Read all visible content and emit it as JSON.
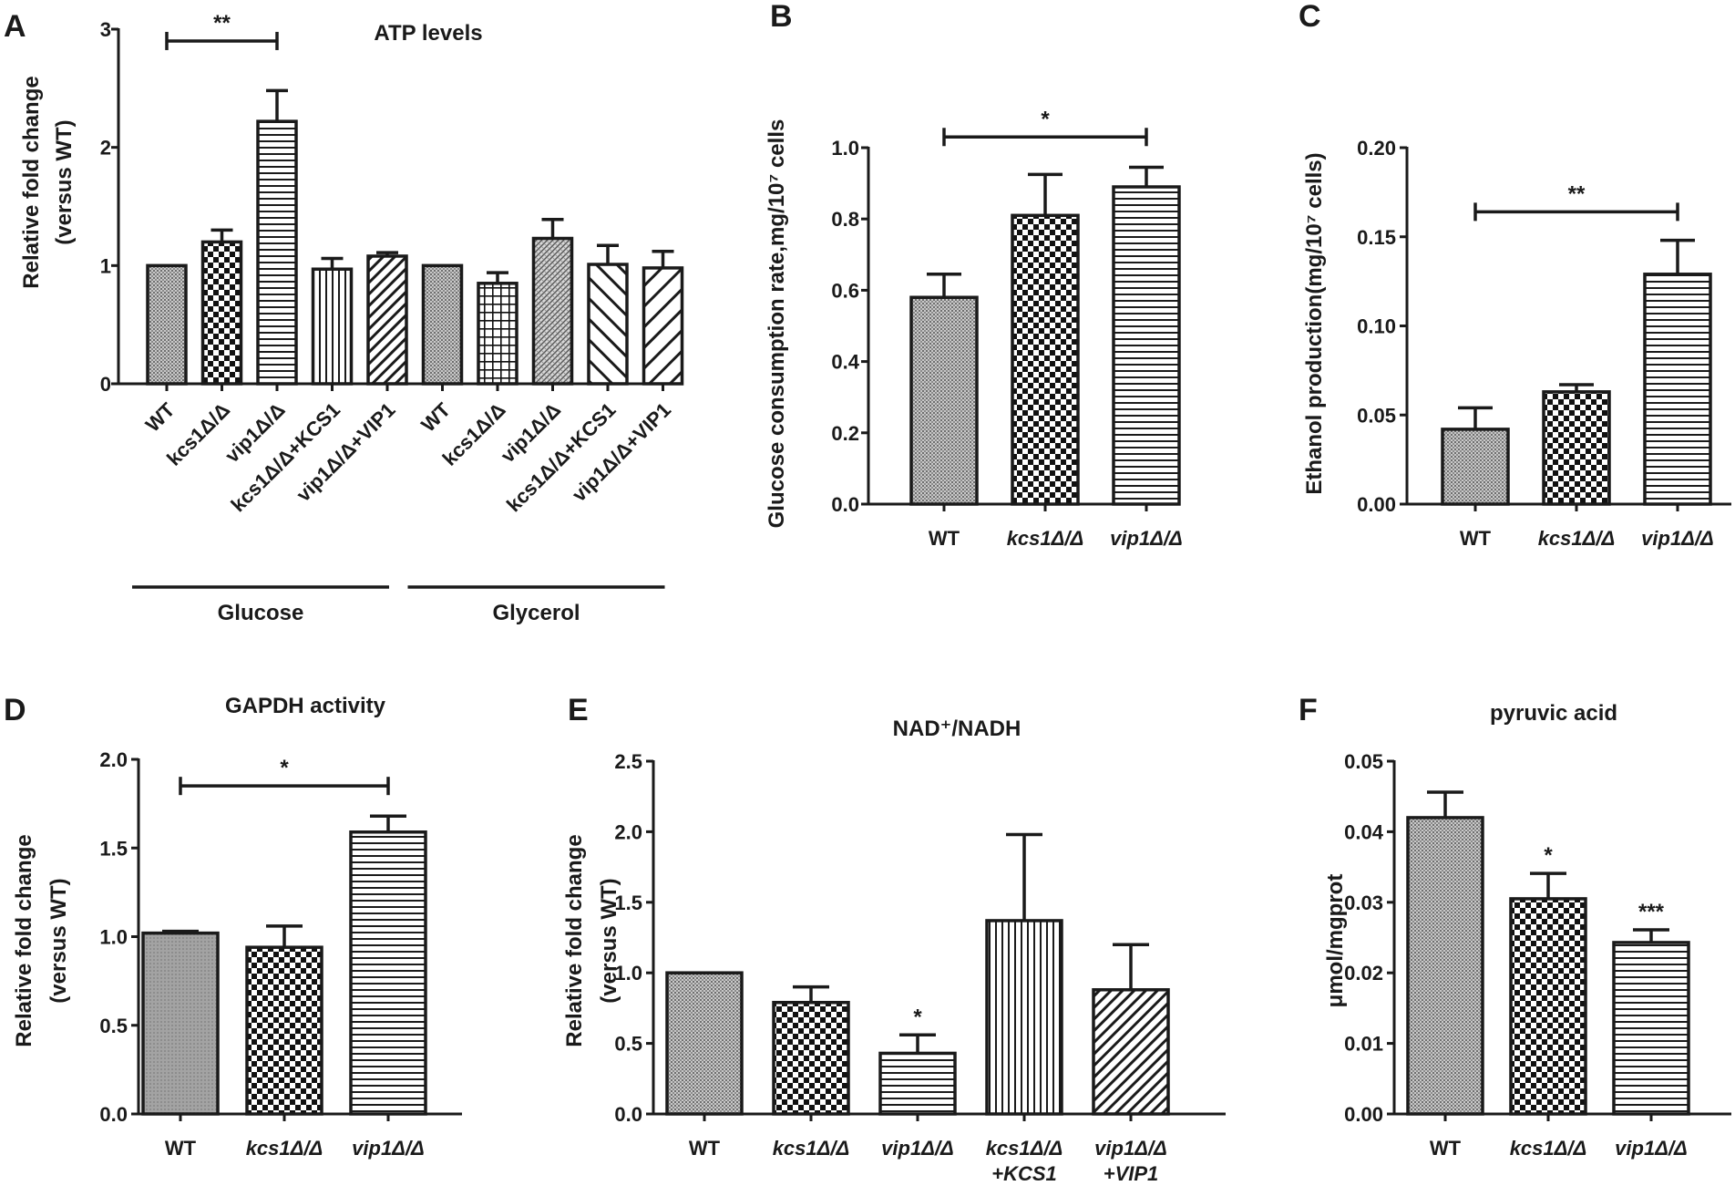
{
  "figure": {
    "background": "#ffffff",
    "ink": "#1a1a1a"
  },
  "chart_data": [
    {
      "panel": "A",
      "type": "bar",
      "title": "ATP levels",
      "ylabel": [
        "Relative fold change",
        "(versus WT)"
      ],
      "xlabel": "",
      "ylim": [
        0,
        3
      ],
      "yticks": [
        "0",
        "1",
        "2",
        "3"
      ],
      "grid": false,
      "rotate_labels": true,
      "categories": [
        "WT",
        "kcs1Δ/Δ",
        "vip1Δ/Δ",
        "kcs1Δ/Δ+KCS1",
        "vip1Δ/Δ+VIP1",
        "WT",
        "kcs1Δ/Δ",
        "vip1Δ/Δ",
        "kcs1Δ/Δ+KCS1",
        "vip1Δ/Δ+VIP1"
      ],
      "values": [
        1.0,
        1.2,
        2.22,
        0.97,
        1.08,
        1.0,
        0.85,
        1.23,
        1.01,
        0.98
      ],
      "errors": [
        0,
        0.1,
        0.26,
        0.09,
        0.03,
        0,
        0.09,
        0.16,
        0.16,
        0.14
      ],
      "patterns": [
        "fine",
        "checker",
        "hstripe",
        "vstripe",
        "diagR",
        "fine",
        "grid",
        "fineDiag",
        "diagL",
        "diagR2"
      ],
      "brackets": [
        {
          "from": 0,
          "to": 2,
          "y": 2.9,
          "label": "**"
        }
      ],
      "star_marks": [],
      "groups": [
        {
          "label": "Glucose",
          "from": 0,
          "to": 4
        },
        {
          "label": "Glycerol",
          "from": 5,
          "to": 9
        }
      ]
    },
    {
      "panel": "B",
      "type": "bar",
      "title": "",
      "ylabel": [
        "Glucose consumption rate,mg/10⁷ cells"
      ],
      "xlabel": "",
      "ylim": [
        0,
        1.0
      ],
      "yticks": [
        "0.0",
        "0.2",
        "0.4",
        "0.6",
        "0.8",
        "1.0"
      ],
      "grid": false,
      "rotate_labels": false,
      "categories": [
        "WT",
        "kcs1Δ/Δ",
        "vip1Δ/Δ"
      ],
      "italic_categories": [
        false,
        true,
        true
      ],
      "values": [
        0.58,
        0.81,
        0.89
      ],
      "errors": [
        0.065,
        0.115,
        0.055
      ],
      "patterns": [
        "fine",
        "checker",
        "hstripe"
      ],
      "brackets": [
        {
          "from": 0,
          "to": 2,
          "y": 1.03,
          "label": "*"
        }
      ],
      "star_marks": []
    },
    {
      "panel": "C",
      "type": "bar",
      "title": "",
      "ylabel": [
        "Ethanol production(mg/10⁷ cells)"
      ],
      "xlabel": "",
      "ylim": [
        0,
        0.2
      ],
      "yticks": [
        "0.00",
        "0.05",
        "0.10",
        "0.15",
        "0.20"
      ],
      "grid": false,
      "rotate_labels": false,
      "categories": [
        "WT",
        "kcs1Δ/Δ",
        "vip1Δ/Δ"
      ],
      "italic_categories": [
        false,
        true,
        true
      ],
      "values": [
        0.042,
        0.063,
        0.129
      ],
      "errors": [
        0.012,
        0.004,
        0.019
      ],
      "patterns": [
        "fine",
        "checker",
        "hstripe"
      ],
      "brackets": [
        {
          "from": 0,
          "to": 2,
          "y": 0.164,
          "label": "**"
        }
      ],
      "star_marks": []
    },
    {
      "panel": "D",
      "type": "bar",
      "title": "GAPDH activity",
      "ylabel": [
        "Relative fold change",
        "(versus WT)"
      ],
      "xlabel": "",
      "ylim": [
        0,
        2.0
      ],
      "yticks": [
        "0.0",
        "0.5",
        "1.0",
        "1.5",
        "2.0"
      ],
      "grid": false,
      "rotate_labels": false,
      "categories": [
        "WT",
        "kcs1Δ/Δ",
        "vip1Δ/Δ"
      ],
      "italic_categories": [
        false,
        true,
        true
      ],
      "values": [
        1.02,
        0.94,
        1.59
      ],
      "errors": [
        0.01,
        0.12,
        0.09
      ],
      "patterns": [
        "smooth",
        "checker",
        "hstripe"
      ],
      "brackets": [
        {
          "from": 0,
          "to": 2,
          "y": 1.85,
          "label": "*"
        }
      ],
      "star_marks": []
    },
    {
      "panel": "E",
      "type": "bar",
      "title": "NAD⁺/NADH",
      "ylabel": [
        "Relative fold change",
        "(versus WT)"
      ],
      "xlabel": "",
      "ylim": [
        0,
        2.5
      ],
      "yticks": [
        "0.0",
        "0.5",
        "1.0",
        "1.5",
        "2.0",
        "2.5"
      ],
      "grid": false,
      "rotate_labels": false,
      "categories": [
        "WT",
        "kcs1Δ/Δ",
        "vip1Δ/Δ",
        "kcs1Δ/Δ\n+KCS1",
        "vip1Δ/Δ\n+VIP1"
      ],
      "italic_categories": [
        false,
        true,
        true,
        true,
        true
      ],
      "values": [
        1.0,
        0.79,
        0.43,
        1.37,
        0.88
      ],
      "errors": [
        0,
        0.11,
        0.13,
        0.61,
        0.32
      ],
      "patterns": [
        "fine",
        "checker",
        "hstripe",
        "vstripe",
        "diagR"
      ],
      "brackets": [],
      "star_marks": [
        {
          "index": 2,
          "label": "*"
        }
      ]
    },
    {
      "panel": "F",
      "type": "bar",
      "title": "pyruvic acid",
      "ylabel": [
        "μmol/mgprot"
      ],
      "xlabel": "",
      "ylim": [
        0,
        0.05
      ],
      "yticks": [
        "0.00",
        "0.01",
        "0.02",
        "0.03",
        "0.04",
        "0.05"
      ],
      "grid": false,
      "rotate_labels": false,
      "categories": [
        "WT",
        "kcs1Δ/Δ",
        "vip1Δ/Δ"
      ],
      "italic_categories": [
        false,
        true,
        true
      ],
      "values": [
        0.042,
        0.0305,
        0.0243
      ],
      "errors": [
        0.0036,
        0.0036,
        0.0018
      ],
      "patterns": [
        "fine",
        "checker",
        "hstripe"
      ],
      "brackets": [],
      "star_marks": [
        {
          "index": 1,
          "label": "*"
        },
        {
          "index": 2,
          "label": "***"
        }
      ]
    }
  ]
}
